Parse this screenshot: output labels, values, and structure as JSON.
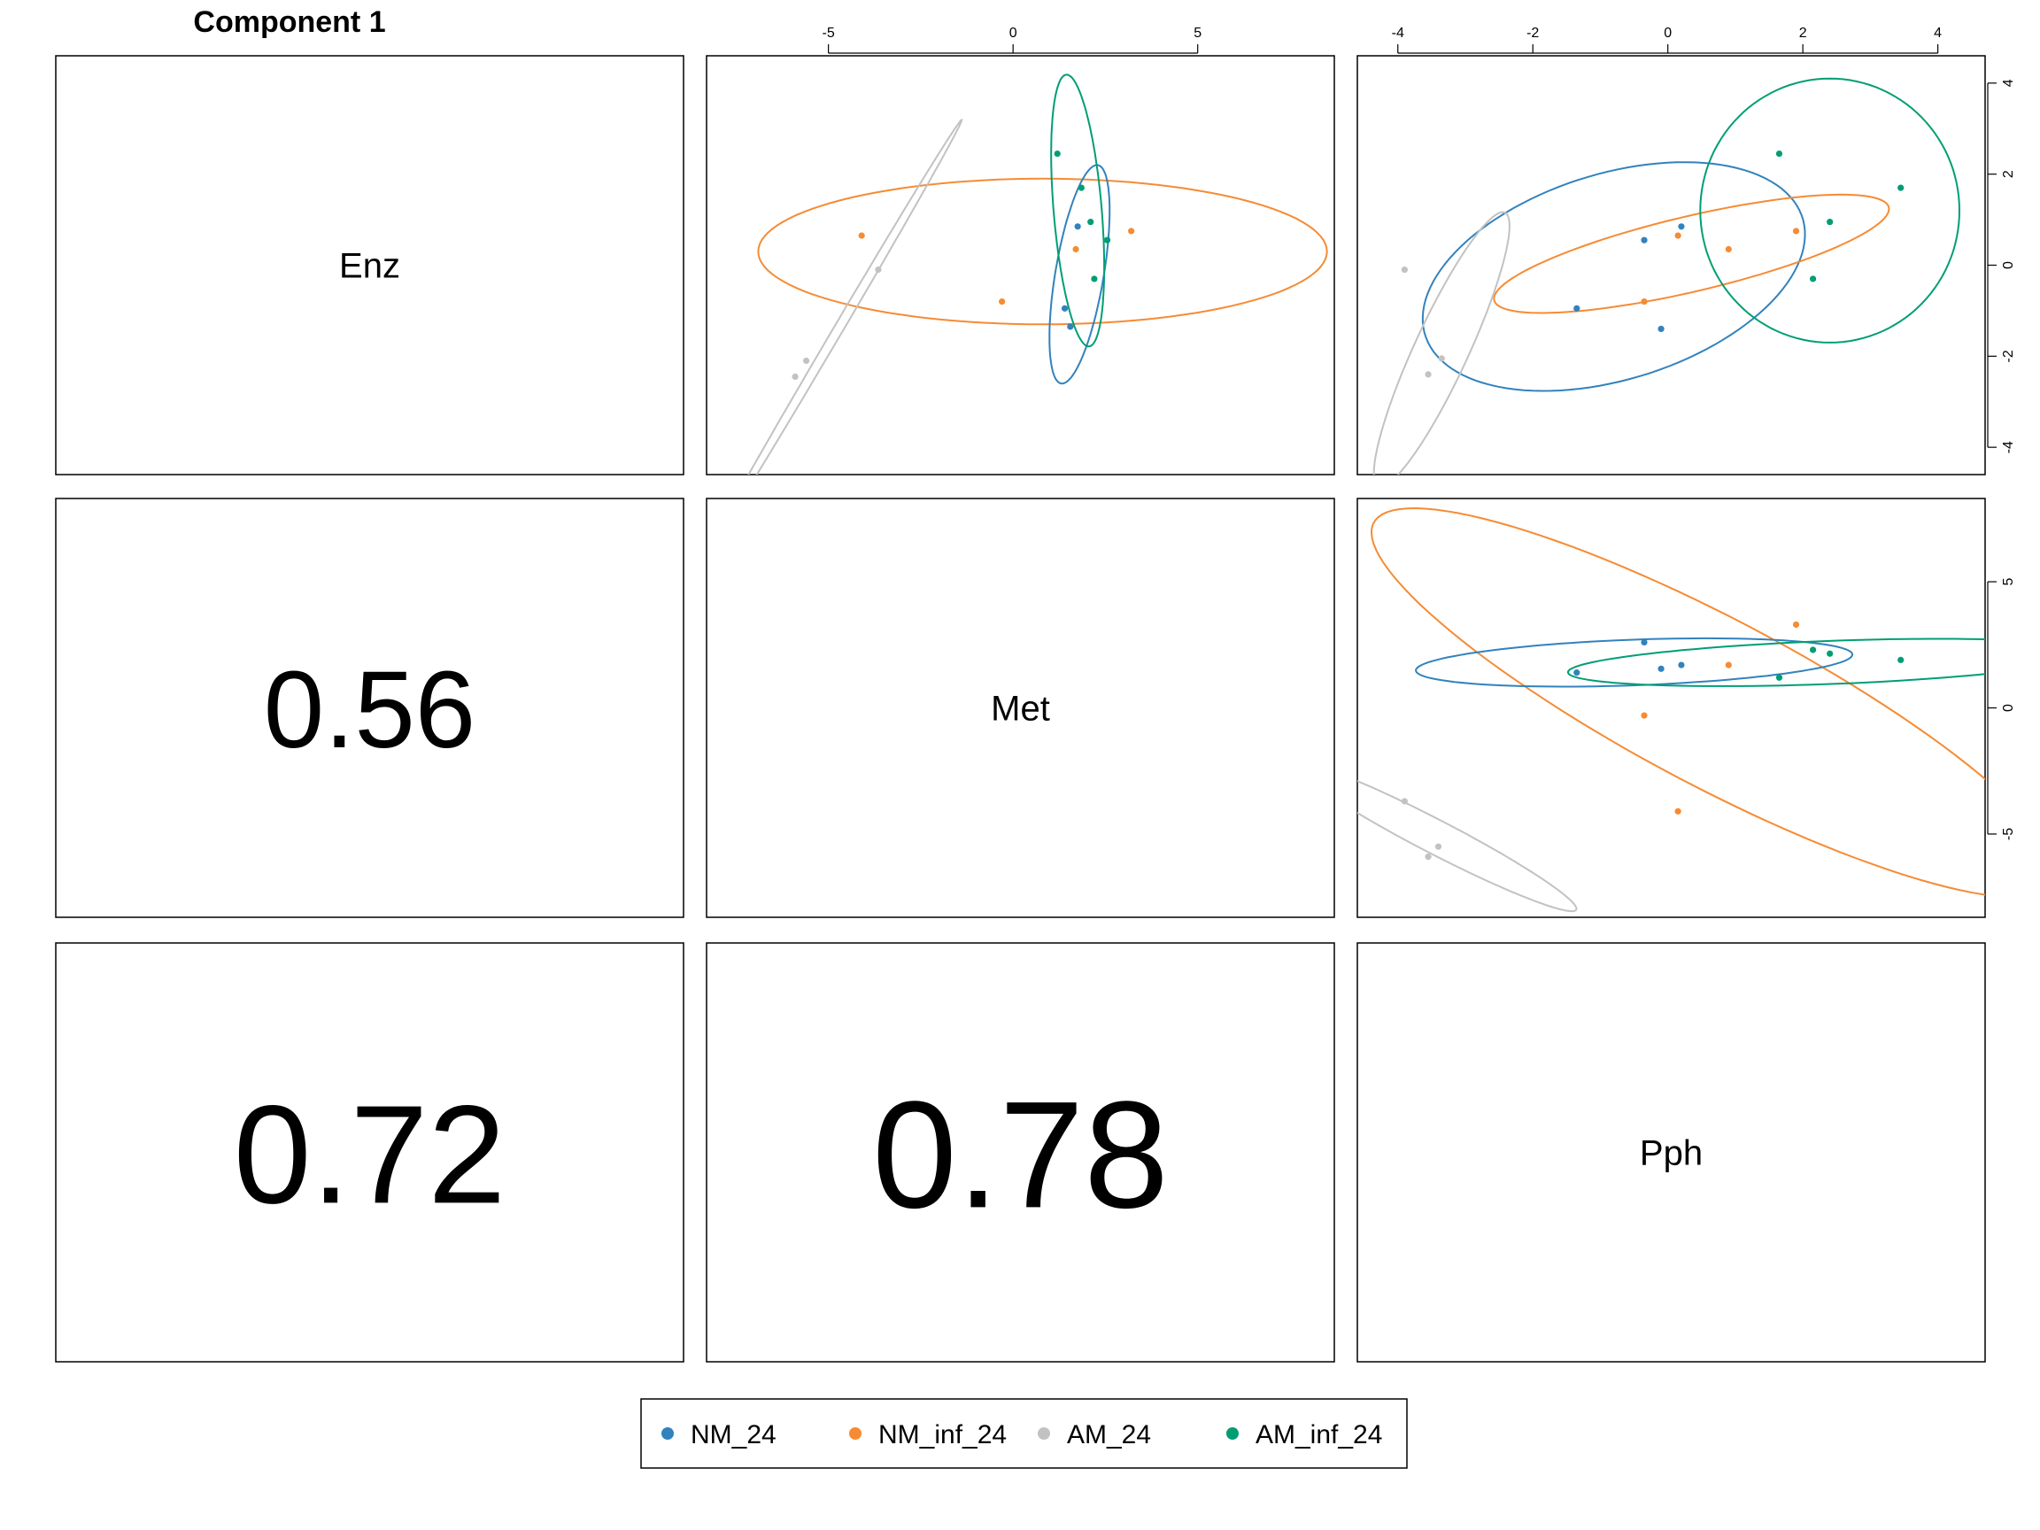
{
  "chart_data": {
    "type": "scatter",
    "title": "Component 1",
    "variables": [
      "Enz",
      "Met",
      "Pph"
    ],
    "correlations": [
      {
        "row": 1,
        "col": 0,
        "label": "0.56",
        "value": 0.56
      },
      {
        "row": 2,
        "col": 0,
        "label": "0.72",
        "value": 0.72
      },
      {
        "row": 2,
        "col": 1,
        "label": "0.78",
        "value": 0.78
      }
    ],
    "series": [
      {
        "name": "NM_24",
        "color": "#3182BD"
      },
      {
        "name": "NM_inf_24",
        "color": "#F68B33"
      },
      {
        "name": "AM_24",
        "color": "#C2C2C2"
      },
      {
        "name": "AM_inf_24",
        "color": "#009E73"
      }
    ],
    "scatter_panels": [
      {
        "id": "met-vs-enz",
        "row": 0,
        "col": 1,
        "x_var": "Met",
        "y_var": "Enz",
        "xlim": [
          -8.3,
          8.7
        ],
        "ylim": [
          -4.6,
          4.6
        ],
        "x_ticks": [
          -5,
          0,
          5
        ],
        "y_ticks": [],
        "x_axis_side": "top",
        "y_axis_side": "none",
        "points": [
          {
            "series": "NM_24",
            "x": 1.75,
            "y": 0.85
          },
          {
            "series": "NM_24",
            "x": 1.4,
            "y": -0.95
          },
          {
            "series": "NM_24",
            "x": 1.55,
            "y": -1.35
          },
          {
            "series": "NM_24",
            "x": 2.55,
            "y": 0.55
          },
          {
            "series": "NM_inf_24",
            "x": -4.1,
            "y": 0.65
          },
          {
            "series": "NM_inf_24",
            "x": 3.2,
            "y": 0.75
          },
          {
            "series": "NM_inf_24",
            "x": 1.7,
            "y": 0.35
          },
          {
            "series": "NM_inf_24",
            "x": -0.3,
            "y": -0.8
          },
          {
            "series": "AM_24",
            "x": -3.65,
            "y": -0.1
          },
          {
            "series": "AM_24",
            "x": -5.6,
            "y": -2.1
          },
          {
            "series": "AM_24",
            "x": -5.9,
            "y": -2.45
          },
          {
            "series": "AM_inf_24",
            "x": 1.2,
            "y": 2.45
          },
          {
            "series": "AM_inf_24",
            "x": 1.85,
            "y": 1.7
          },
          {
            "series": "AM_inf_24",
            "x": 2.1,
            "y": 0.95
          },
          {
            "series": "AM_inf_24",
            "x": 2.55,
            "y": 0.55
          },
          {
            "series": "AM_inf_24",
            "x": 2.2,
            "y": -0.3
          }
        ],
        "ellipses": [
          {
            "series": "NM_inf_24",
            "cx": 0.8,
            "cy": 0.3,
            "rx": 7.7,
            "ry": 1.6,
            "angle": 0
          },
          {
            "series": "NM_24",
            "cx": 1.8,
            "cy": -0.2,
            "rx": 2.45,
            "ry": 0.65,
            "angle": 78
          },
          {
            "series": "AM_inf_24",
            "cx": 1.75,
            "cy": 1.2,
            "rx": 3.0,
            "ry": 0.65,
            "angle": 96
          },
          {
            "series": "AM_24",
            "cx": -4.8,
            "cy": -1.5,
            "rx": 5.8,
            "ry": 0.12,
            "angle": 54
          }
        ]
      },
      {
        "id": "pph-vs-enz",
        "row": 0,
        "col": 2,
        "x_var": "Pph",
        "y_var": "Enz",
        "xlim": [
          -4.6,
          4.7
        ],
        "ylim": [
          -4.6,
          4.6
        ],
        "x_ticks": [
          -4,
          -2,
          0,
          2,
          4
        ],
        "y_ticks": [
          -4,
          -2,
          0,
          2,
          4
        ],
        "x_axis_side": "top",
        "y_axis_side": "right",
        "points": [
          {
            "series": "NM_24",
            "x": -1.35,
            "y": -0.95
          },
          {
            "series": "NM_24",
            "x": -0.35,
            "y": 0.55
          },
          {
            "series": "NM_24",
            "x": 0.2,
            "y": 0.85
          },
          {
            "series": "NM_24",
            "x": -0.1,
            "y": -1.4
          },
          {
            "series": "NM_inf_24",
            "x": -0.35,
            "y": -0.8
          },
          {
            "series": "NM_inf_24",
            "x": 0.15,
            "y": 0.65
          },
          {
            "series": "NM_inf_24",
            "x": 0.9,
            "y": 0.35
          },
          {
            "series": "NM_inf_24",
            "x": 1.9,
            "y": 0.75
          },
          {
            "series": "AM_24",
            "x": -3.9,
            "y": -0.1
          },
          {
            "series": "AM_24",
            "x": -3.35,
            "y": -2.05
          },
          {
            "series": "AM_24",
            "x": -3.55,
            "y": -2.4
          },
          {
            "series": "AM_inf_24",
            "x": 1.65,
            "y": 2.45
          },
          {
            "series": "AM_inf_24",
            "x": 3.45,
            "y": 1.7
          },
          {
            "series": "AM_inf_24",
            "x": 2.4,
            "y": 0.95
          },
          {
            "series": "AM_inf_24",
            "x": 2.15,
            "y": -0.3
          }
        ],
        "ellipses": [
          {
            "series": "NM_24",
            "cx": -0.8,
            "cy": -0.25,
            "rx": 3.15,
            "ry": 2.1,
            "angle": 36
          },
          {
            "series": "NM_inf_24",
            "cx": 0.35,
            "cy": 0.25,
            "rx": 3.1,
            "ry": 0.8,
            "angle": 20
          },
          {
            "series": "AM_inf_24",
            "cx": 2.4,
            "cy": 1.2,
            "rx": 1.92,
            "ry": 2.9,
            "angle": 0
          },
          {
            "series": "AM_24",
            "cx": -3.35,
            "cy": -1.85,
            "rx": 3.15,
            "ry": 0.42,
            "angle": 73
          }
        ]
      },
      {
        "id": "pph-vs-met",
        "row": 1,
        "col": 2,
        "x_var": "Pph",
        "y_var": "Met",
        "xlim": [
          -4.6,
          4.7
        ],
        "ylim": [
          -8.3,
          8.3
        ],
        "x_ticks": [],
        "y_ticks": [
          -5,
          0,
          5
        ],
        "x_axis_side": "none",
        "y_axis_side": "right",
        "points": [
          {
            "series": "NM_24",
            "x": -1.35,
            "y": 1.4
          },
          {
            "series": "NM_24",
            "x": -0.35,
            "y": 2.6
          },
          {
            "series": "NM_24",
            "x": -0.1,
            "y": 1.55
          },
          {
            "series": "NM_24",
            "x": 0.2,
            "y": 1.7
          },
          {
            "series": "NM_inf_24",
            "x": 1.9,
            "y": 3.3
          },
          {
            "series": "NM_inf_24",
            "x": 0.9,
            "y": 1.7
          },
          {
            "series": "NM_inf_24",
            "x": -0.35,
            "y": -0.3
          },
          {
            "series": "NM_inf_24",
            "x": 0.15,
            "y": -4.1
          },
          {
            "series": "AM_24",
            "x": -3.9,
            "y": -3.7
          },
          {
            "series": "AM_24",
            "x": -3.4,
            "y": -5.5
          },
          {
            "series": "AM_24",
            "x": -3.55,
            "y": -5.9
          },
          {
            "series": "AM_inf_24",
            "x": 1.65,
            "y": 1.2
          },
          {
            "series": "AM_inf_24",
            "x": 2.15,
            "y": 2.3
          },
          {
            "series": "AM_inf_24",
            "x": 2.4,
            "y": 2.15
          },
          {
            "series": "AM_inf_24",
            "x": 3.45,
            "y": 1.9
          }
        ],
        "ellipses": [
          {
            "series": "NM_inf_24",
            "cx": 0.7,
            "cy": 0.2,
            "rx": 9.0,
            "ry": 2.1,
            "angle": -58
          },
          {
            "series": "NM_24",
            "cx": -0.5,
            "cy": 1.8,
            "rx": 3.25,
            "ry": 0.9,
            "angle": 6
          },
          {
            "series": "AM_inf_24",
            "cx": 2.4,
            "cy": 1.8,
            "rx": 3.9,
            "ry": 0.85,
            "angle": 6
          },
          {
            "series": "AM_24",
            "cx": -3.45,
            "cy": -5.1,
            "rx": 3.6,
            "ry": 0.44,
            "angle": -55
          }
        ]
      }
    ]
  }
}
